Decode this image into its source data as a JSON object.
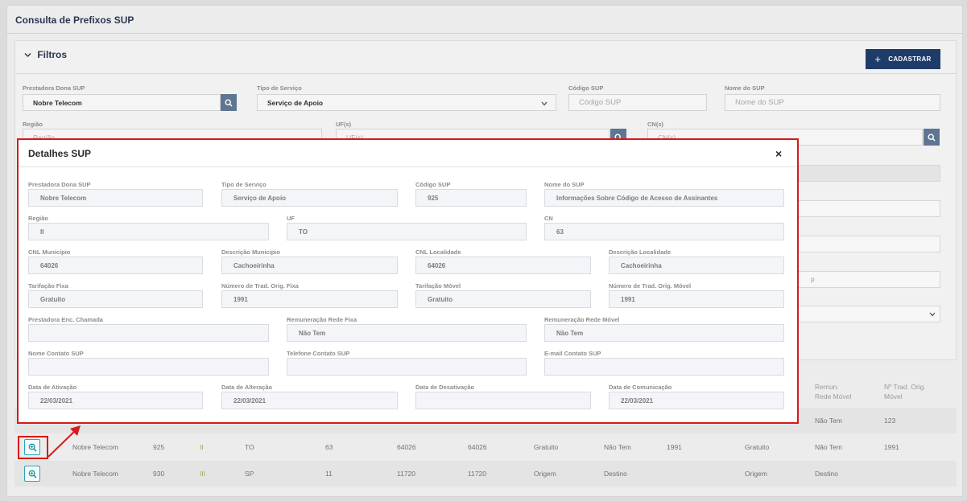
{
  "page": {
    "title": "Consulta de Prefixos SUP"
  },
  "filters": {
    "title": "Filtros",
    "cadastrar_label": "CADASTRAR",
    "prestadora_label": "Prestadora Dona SUP",
    "prestadora_value": "Nobre Telecom",
    "tipo_label": "Tipo de Serviço",
    "tipo_value": "Serviço de Apoio",
    "codigo_label": "Código SUP",
    "codigo_placeholder": "Código SUP",
    "nome_label": "Nome do SUP",
    "nome_placeholder": "Nome do SUP",
    "regiao_label": "Região",
    "regiao_placeholder": "Região",
    "uf_label": "UF(s)",
    "uf_placeholder": "UF(s)",
    "cn_label": "CN(s)",
    "cn_placeholder": "CN(s)",
    "peek_text": "p"
  },
  "table": {
    "header_partial": [
      "Remun. Rede Móvel",
      "Nº Trad. Orig. Móvel"
    ],
    "partial_row": [
      "Não Tem",
      "123"
    ],
    "rows": [
      [
        "Nobre Telecom",
        "925",
        "II",
        "TO",
        "63",
        "64026",
        "64026",
        "Gratuito",
        "Não Tem",
        "1991",
        "Gratuito",
        "Não Tem",
        "1991"
      ],
      [
        "Nobre Telecom",
        "930",
        "III",
        "SP",
        "11",
        "11720",
        "11720",
        "Origem",
        "Destino",
        "",
        "Origem",
        "Destino",
        ""
      ]
    ]
  },
  "modal": {
    "title": "Detalhes SUP",
    "close_symbol": "×",
    "fields": {
      "prestadora": {
        "label": "Prestadora Dona SUP",
        "value": "Nobre Telecom"
      },
      "tipo": {
        "label": "Tipo de Serviço",
        "value": "Serviço de Apoio"
      },
      "codigo": {
        "label": "Código SUP",
        "value": "925"
      },
      "nome": {
        "label": "Nome do SUP",
        "value": "Informações Sobre Código de Acesso de Assinantes"
      },
      "regiao": {
        "label": "Região",
        "value": "II"
      },
      "uf": {
        "label": "UF",
        "value": "TO"
      },
      "cn": {
        "label": "CN",
        "value": "63"
      },
      "cnl_municipio": {
        "label": "CNL Município",
        "value": "64026"
      },
      "desc_municipio": {
        "label": "Descrição Município",
        "value": "Cachoeirinha"
      },
      "cnl_localidade": {
        "label": "CNL Localidade",
        "value": "64026"
      },
      "desc_localidade": {
        "label": "Descrição Localidade",
        "value": "Cachoeirinha"
      },
      "tarif_fixa": {
        "label": "Tarifação Fixa",
        "value": "Gratuito"
      },
      "num_fixa": {
        "label": "Número de Trad. Orig. Fixa",
        "value": "1991"
      },
      "tarif_movel": {
        "label": "Tarifação Móvel",
        "value": "Gratuito"
      },
      "num_movel": {
        "label": "Número de Trad. Orig. Móvel",
        "value": "1991"
      },
      "prest_enc": {
        "label": "Prestadora Enc. Chamada",
        "value": ""
      },
      "rem_fixa": {
        "label": "Remuneração Rede Fixa",
        "value": "Não Tem"
      },
      "rem_movel": {
        "label": "Remuneração Rede Móvel",
        "value": "Não Tem"
      },
      "nome_contato": {
        "label": "Nome Contato SUP",
        "value": ""
      },
      "tel_contato": {
        "label": "Telefone Contato SUP",
        "value": ""
      },
      "email_contato": {
        "label": "E-mail Contato SUP",
        "value": ""
      },
      "data_ativacao": {
        "label": "Data de Ativação",
        "value": "22/03/2021"
      },
      "data_alteracao": {
        "label": "Data de Alteração",
        "value": "22/03/2021"
      },
      "data_desativacao": {
        "label": "Data de Desativação",
        "value": ""
      },
      "data_comunicacao": {
        "label": "Data de Comunicação",
        "value": "22/03/2021"
      }
    }
  },
  "colors": {
    "accent": "#1f3b6a",
    "highlight": "#d71a1a",
    "zoom": "#2aa7b8",
    "search": "#5e7691"
  },
  "icons": {
    "search": "search-icon",
    "zoom": "zoom-in-icon",
    "chevron": "chevron-down-icon",
    "close": "close-icon"
  }
}
